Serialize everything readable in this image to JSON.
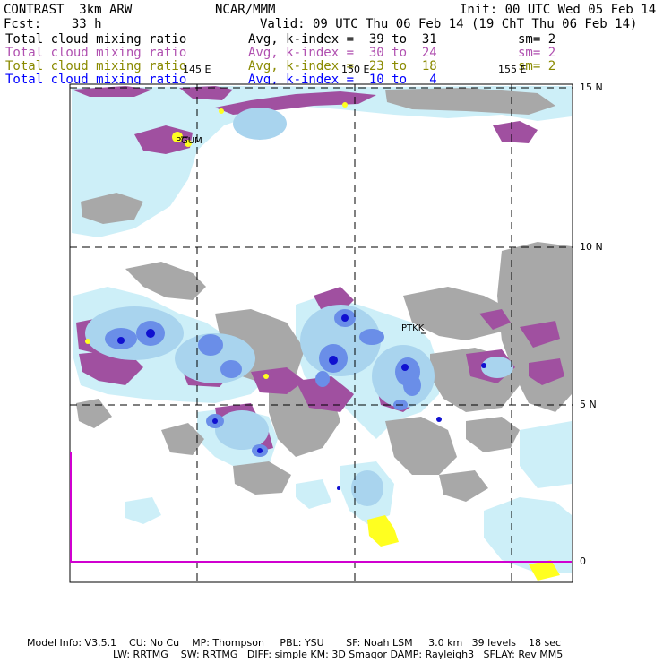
{
  "header": {
    "left1": "CONTRAST  3km ARW",
    "left2": "Fcst:    33 h",
    "center1": "NCAR/MMM",
    "init": "Init: 00 UTC Wed 05 Feb 14",
    "valid": "Valid: 09 UTC Thu 06 Feb 14 (19 ChT Thu 06 Feb 14)"
  },
  "fields": [
    {
      "name": "Total cloud mixing ratio",
      "avg": "Avg, k-index =  39 to  31",
      "sm": "sm= 2",
      "color": "#000000"
    },
    {
      "name": "Total cloud mixing ratio",
      "avg": "Avg, k-index =  30 to  24",
      "sm": "sm= 2",
      "color": "#b050b0"
    },
    {
      "name": "Total cloud mixing ratio",
      "avg": "Avg, k-index =  23 to  18",
      "sm": "sm= 2",
      "color": "#8a8a00"
    },
    {
      "name": "Total cloud mixing ratio",
      "avg": "Avg, k-index =  10 to   4",
      "sm": "",
      "color": "#0000ff"
    }
  ],
  "map": {
    "lon_labels": [
      "145 E",
      "150 E",
      "155 E"
    ],
    "lat_labels": [
      "15 N",
      "10 N",
      "5 N",
      "0"
    ],
    "stations": [
      "PGUM",
      "PTKK"
    ],
    "colors": {
      "gray": "#a8a8a8",
      "purple": "#a050a0",
      "lightblue": "#cdeff8",
      "midblue": "#a9d4ee",
      "blue": "#6a8ee8",
      "darkblue": "#1010d0",
      "yellow": "#ffff20",
      "magenta": "#d000d0"
    }
  },
  "footer": {
    "line1": "Model Info: V3.5.1    CU: No Cu    MP: Thompson     PBL: YSU       SF: Noah LSM     3.0 km   39 levels    18 sec",
    "line2": "LW: RRTMG    SW: RRTMG   DIFF: simple KM: 3D Smagor DAMP: Rayleigh3   SFLAY: Rev MM5"
  }
}
